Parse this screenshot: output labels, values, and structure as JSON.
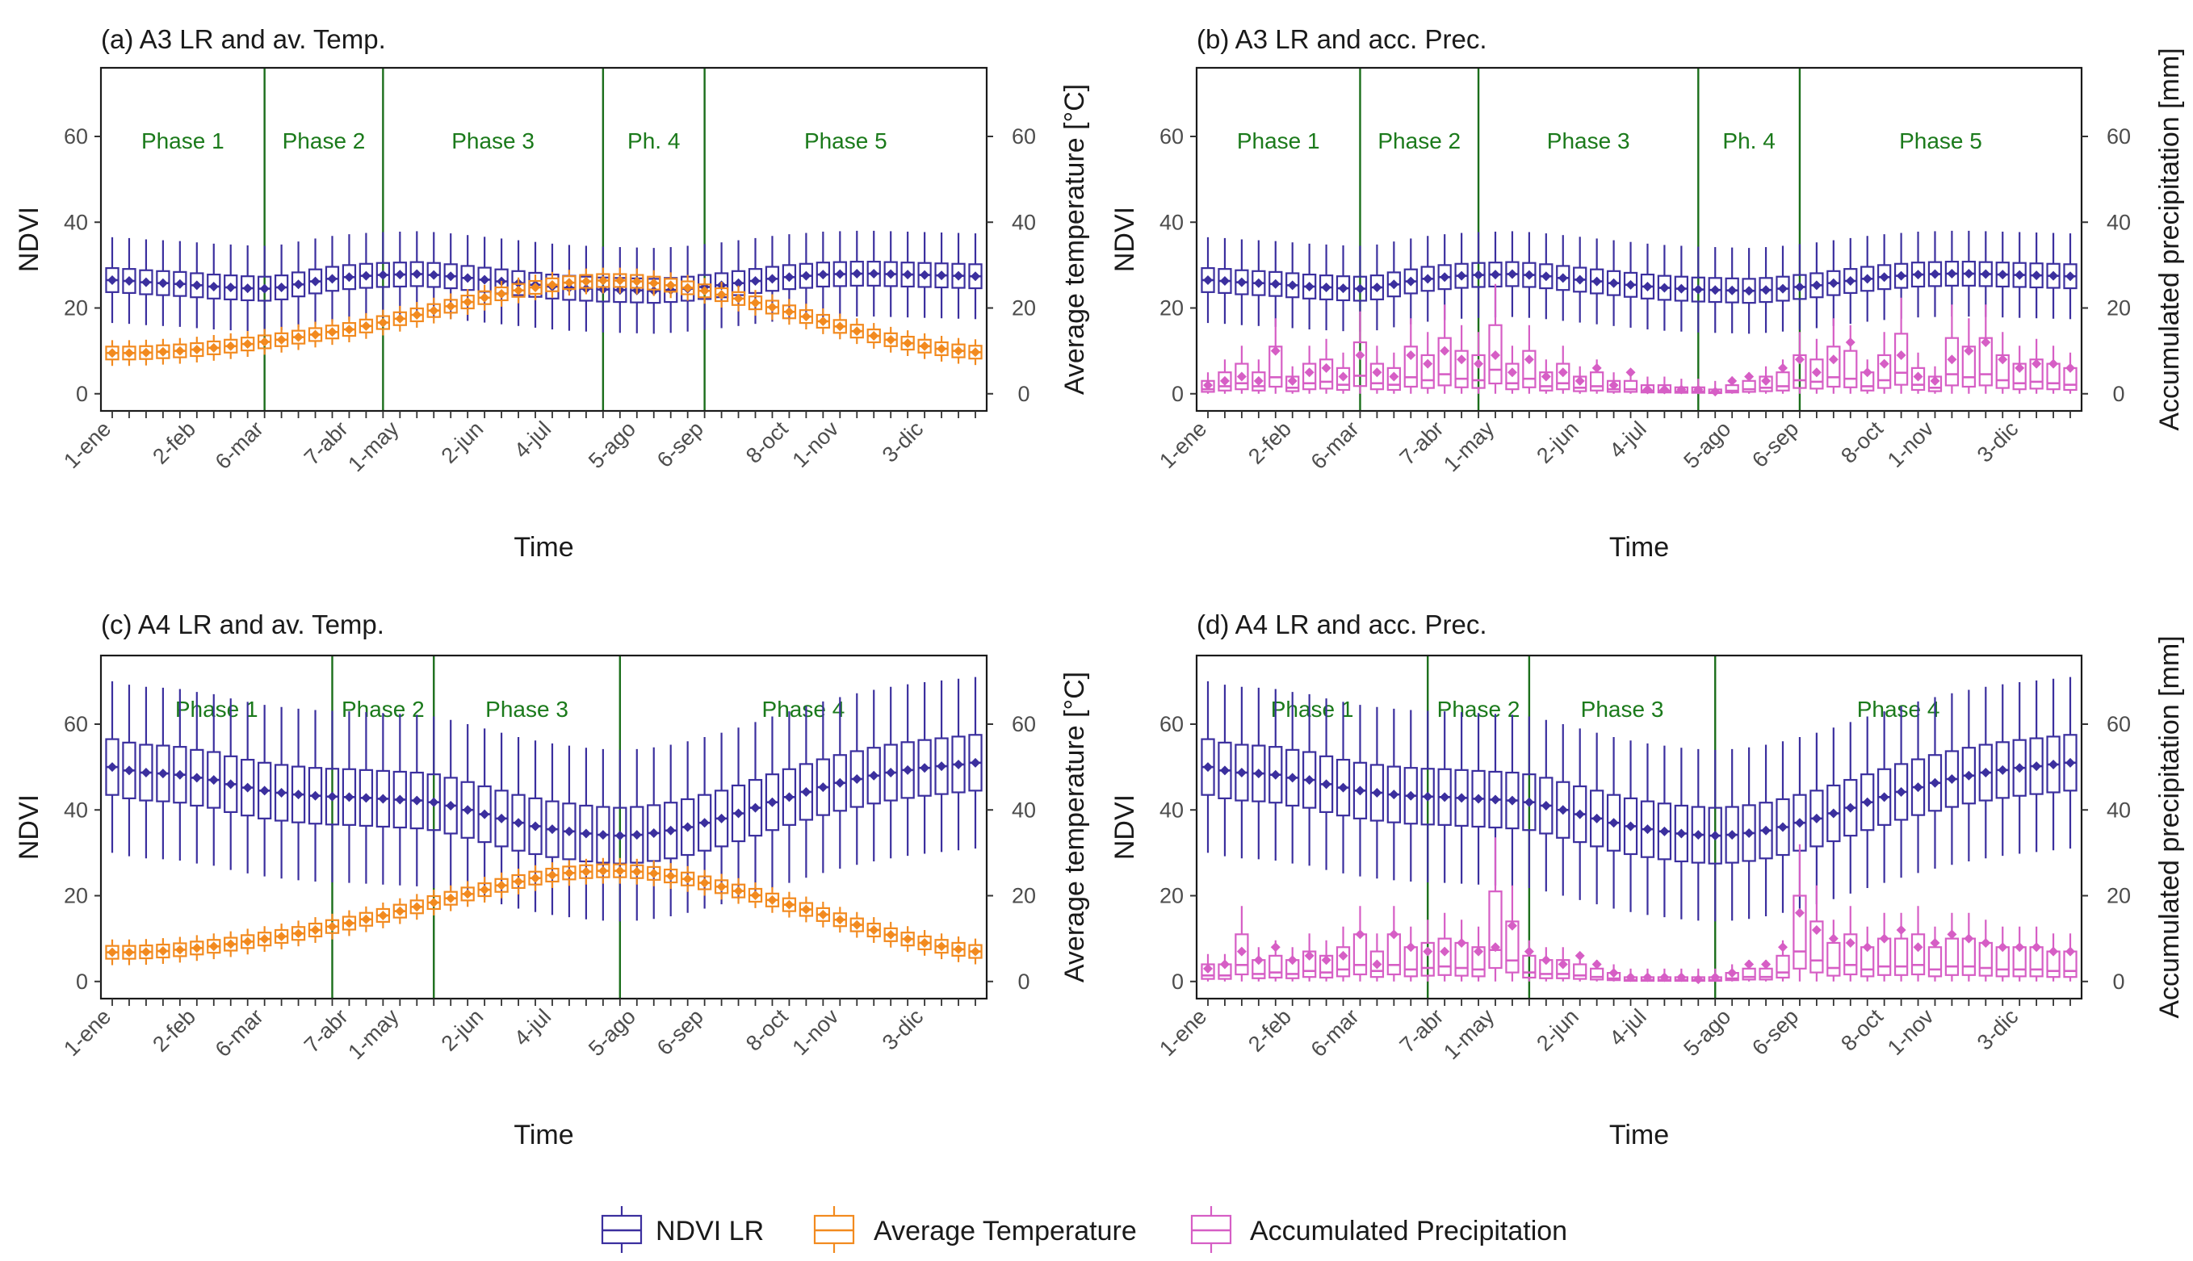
{
  "colors": {
    "ndvi": "#3b2f9e",
    "temperature": "#f28a1f",
    "precipitation": "#d65ec5",
    "phase_line": "#1b6e1b",
    "frame": "#1a1a1a"
  },
  "legend": {
    "ndvi": "NDVI LR",
    "temperature": "Average Temperature",
    "precipitation": "Accumulated Precipitation"
  },
  "chart_data": [
    {
      "id": "a",
      "type": "box",
      "title": "(a) A3 LR and av. Temp.",
      "xlabel": "Time",
      "ylabel": "NDVI",
      "y2label": "Average temperature [°C]",
      "ylim": [
        -4,
        76
      ],
      "yticks": [
        0,
        20,
        40,
        60
      ],
      "xticklabels": [
        "1-ene",
        "2-feb",
        "6-mar",
        "7-abr",
        "1-may",
        "2-jun",
        "4-jul",
        "5-ago",
        "6-sep",
        "8-oct",
        "1-nov",
        "3-dic"
      ],
      "xtick_weeks": [
        1,
        6,
        10,
        15,
        18,
        23,
        27,
        32,
        36,
        41,
        44,
        49
      ],
      "n_weeks": 52,
      "phases": [
        {
          "label": "Phase 1",
          "start_week": 1,
          "end_week": 10
        },
        {
          "label": "Phase 2",
          "start_week": 10,
          "end_week": 17
        },
        {
          "label": "Phase 3",
          "start_week": 17,
          "end_week": 30
        },
        {
          "label": "Ph. 4",
          "start_week": 30,
          "end_week": 36
        },
        {
          "label": "Phase 5",
          "start_week": 36,
          "end_week": 52
        }
      ],
      "ndvi_series": {
        "name": "NDVI LR",
        "median": [
          26.5,
          26.3,
          26,
          25.8,
          25.6,
          25.3,
          25,
          24.8,
          24.6,
          24.5,
          24.8,
          25.5,
          26.2,
          26.8,
          27.2,
          27.5,
          27.7,
          27.8,
          27.9,
          27.7,
          27.4,
          27,
          26.6,
          26.2,
          25.8,
          25.4,
          25,
          24.7,
          24.5,
          24.3,
          24.2,
          24.1,
          24,
          24.2,
          24.5,
          24.9,
          25.3,
          25.8,
          26.3,
          26.8,
          27.2,
          27.5,
          27.8,
          27.9,
          28,
          28,
          27.9,
          27.8,
          27.7,
          27.6,
          27.5,
          27.4
        ],
        "whisker": 10
      },
      "overlay_series": {
        "name": "Average Temperature",
        "median": [
          9.5,
          9.5,
          9.6,
          9.8,
          10,
          10.3,
          10.7,
          11.1,
          11.6,
          12.1,
          12.6,
          13.2,
          13.8,
          14.4,
          15,
          15.8,
          16.6,
          17.5,
          18.4,
          19.4,
          20.4,
          21.4,
          22.4,
          23.3,
          24.1,
          24.8,
          25.4,
          25.9,
          26.2,
          26.4,
          26.4,
          26.2,
          25.8,
          25.3,
          24.7,
          24,
          23.1,
          22.2,
          21.2,
          20.2,
          19.1,
          18,
          16.9,
          15.7,
          14.6,
          13.5,
          12.6,
          11.8,
          11.1,
          10.5,
          10,
          9.7
        ],
        "whisker": 3
      }
    },
    {
      "id": "b",
      "type": "box",
      "title": "(b) A3 LR and acc. Prec.",
      "xlabel": "Time",
      "ylabel": "NDVI",
      "y2label": "Accumulated precipitation [mm]",
      "ylim": [
        -4,
        76
      ],
      "yticks": [
        0,
        20,
        40,
        60
      ],
      "xticklabels": [
        "1-ene",
        "2-feb",
        "6-mar",
        "7-abr",
        "1-may",
        "2-jun",
        "4-jul",
        "5-ago",
        "6-sep",
        "8-oct",
        "1-nov",
        "3-dic"
      ],
      "xtick_weeks": [
        1,
        6,
        10,
        15,
        18,
        23,
        27,
        32,
        36,
        41,
        44,
        49
      ],
      "n_weeks": 52,
      "phases": [
        {
          "label": "Phase 1",
          "start_week": 1,
          "end_week": 10
        },
        {
          "label": "Phase 2",
          "start_week": 10,
          "end_week": 17
        },
        {
          "label": "Phase 3",
          "start_week": 17,
          "end_week": 30
        },
        {
          "label": "Ph. 4",
          "start_week": 30,
          "end_week": 36
        },
        {
          "label": "Phase 5",
          "start_week": 36,
          "end_week": 52
        }
      ],
      "ndvi_series": {
        "name": "NDVI LR",
        "median": [
          26.5,
          26.3,
          26,
          25.8,
          25.6,
          25.3,
          25,
          24.8,
          24.6,
          24.5,
          24.8,
          25.5,
          26.2,
          26.8,
          27.2,
          27.5,
          27.7,
          27.8,
          27.9,
          27.7,
          27.4,
          27,
          26.6,
          26.2,
          25.8,
          25.4,
          25,
          24.7,
          24.5,
          24.3,
          24.2,
          24.1,
          24,
          24.2,
          24.5,
          24.9,
          25.3,
          25.8,
          26.3,
          26.8,
          27.2,
          27.5,
          27.8,
          27.9,
          28,
          28,
          27.9,
          27.8,
          27.7,
          27.6,
          27.5,
          27.4
        ],
        "whisker": 10
      },
      "overlay_series": {
        "name": "Accumulated Precipitation",
        "mean": [
          2,
          3,
          4,
          3,
          10,
          3,
          5,
          6,
          4,
          9,
          5,
          4,
          9,
          7,
          10,
          8,
          7,
          9,
          5,
          8,
          4,
          5,
          3,
          6,
          2,
          5,
          1,
          1,
          1,
          1,
          0.5,
          3,
          4,
          3,
          6,
          8,
          5,
          8,
          12,
          5,
          7,
          9,
          4,
          3,
          8,
          10,
          12,
          8,
          6,
          7,
          7,
          6
        ],
        "q3": [
          3,
          5,
          7,
          5,
          11,
          4,
          7,
          8,
          6,
          12,
          7,
          6,
          11,
          9,
          13,
          10,
          9,
          16,
          7,
          10,
          5,
          7,
          4,
          5,
          3,
          3,
          2,
          2,
          1.5,
          1.5,
          1,
          2,
          3,
          4,
          5,
          9,
          8,
          11,
          10,
          5,
          9,
          14,
          6,
          4,
          13,
          11,
          13,
          9,
          7,
          8,
          7,
          6
        ]
      }
    },
    {
      "id": "c",
      "type": "box",
      "title": "(c) A4 LR and av. Temp.",
      "xlabel": "Time",
      "ylabel": "NDVI",
      "y2label": "Average temperature [°C]",
      "ylim": [
        -4,
        76
      ],
      "yticks": [
        0,
        20,
        40,
        60
      ],
      "xticklabels": [
        "1-ene",
        "2-feb",
        "6-mar",
        "7-abr",
        "1-may",
        "2-jun",
        "4-jul",
        "5-ago",
        "6-sep",
        "8-oct",
        "1-nov",
        "3-dic"
      ],
      "xtick_weeks": [
        1,
        6,
        10,
        15,
        18,
        23,
        27,
        32,
        36,
        41,
        44,
        49
      ],
      "n_weeks": 52,
      "phases": [
        {
          "label": "Phase 1",
          "start_week": 1,
          "end_week": 14
        },
        {
          "label": "Phase 2",
          "start_week": 14,
          "end_week": 20
        },
        {
          "label": "Phase 3",
          "start_week": 20,
          "end_week": 31
        },
        {
          "label": "Phase 4",
          "start_week": 31,
          "end_week": 52
        }
      ],
      "ndvi_series": {
        "name": "NDVI LR",
        "median": [
          50,
          49.2,
          48.7,
          48.5,
          48.2,
          47.5,
          47,
          46,
          45.2,
          44.5,
          44,
          43.6,
          43.3,
          43.1,
          43,
          42.8,
          42.6,
          42.4,
          42.2,
          41.8,
          41,
          40,
          39,
          38,
          37,
          36.2,
          35.5,
          35,
          34.5,
          34.2,
          34,
          34.2,
          34.6,
          35.2,
          36,
          37,
          38,
          39.2,
          40.5,
          41.8,
          43,
          44.2,
          45.3,
          46.3,
          47.2,
          48,
          48.7,
          49.3,
          49.8,
          50.2,
          50.6,
          51
        ],
        "whisker": 20
      },
      "overlay_series": {
        "name": "Average Temperature",
        "median": [
          6.8,
          6.8,
          6.9,
          7.1,
          7.4,
          7.8,
          8.2,
          8.7,
          9.3,
          9.9,
          10.5,
          11.2,
          12,
          12.8,
          13.6,
          14.5,
          15.4,
          16.4,
          17.4,
          18.4,
          19.4,
          20.4,
          21.4,
          22.4,
          23.3,
          24.1,
          24.8,
          25.3,
          25.6,
          25.8,
          25.8,
          25.6,
          25.2,
          24.6,
          23.9,
          23,
          22.1,
          21.1,
          20.1,
          19,
          17.9,
          16.8,
          15.6,
          14.4,
          13.2,
          12,
          10.9,
          9.9,
          9,
          8.2,
          7.5,
          7
        ],
        "whisker": 3
      }
    },
    {
      "id": "d",
      "type": "box",
      "title": "(d) A4 LR and acc. Prec.",
      "xlabel": "Time",
      "ylabel": "NDVI",
      "y2label": "Accumulated precipitation [mm]",
      "ylim": [
        -4,
        76
      ],
      "yticks": [
        0,
        20,
        40,
        60
      ],
      "xticklabels": [
        "1-ene",
        "2-feb",
        "6-mar",
        "7-abr",
        "1-may",
        "2-jun",
        "4-jul",
        "5-ago",
        "6-sep",
        "8-oct",
        "1-nov",
        "3-dic"
      ],
      "xtick_weeks": [
        1,
        6,
        10,
        15,
        18,
        23,
        27,
        32,
        36,
        41,
        44,
        49
      ],
      "n_weeks": 52,
      "phases": [
        {
          "label": "Phase 1",
          "start_week": 1,
          "end_week": 14
        },
        {
          "label": "Phase 2",
          "start_week": 14,
          "end_week": 20
        },
        {
          "label": "Phase 3",
          "start_week": 20,
          "end_week": 31
        },
        {
          "label": "Phase 4",
          "start_week": 31,
          "end_week": 52
        }
      ],
      "ndvi_series": {
        "name": "NDVI LR",
        "median": [
          50,
          49.2,
          48.7,
          48.5,
          48.2,
          47.5,
          47,
          46,
          45.2,
          44.5,
          44,
          43.6,
          43.3,
          43.1,
          43,
          42.8,
          42.6,
          42.4,
          42.2,
          41.8,
          41,
          40,
          39,
          38,
          37,
          36.2,
          35.5,
          35,
          34.5,
          34.2,
          34,
          34.2,
          34.6,
          35.2,
          36,
          37,
          38,
          39.2,
          40.5,
          41.8,
          43,
          44.2,
          45.3,
          46.3,
          47.2,
          48,
          48.7,
          49.3,
          49.8,
          50.2,
          50.6,
          51
        ],
        "whisker": 20
      },
      "overlay_series": {
        "name": "Accumulated Precipitation",
        "mean": [
          3,
          4,
          7,
          5,
          8,
          5,
          6,
          5,
          6,
          11,
          4,
          11,
          8,
          7,
          7,
          9,
          7,
          8,
          13,
          7,
          5,
          4,
          6,
          4,
          2,
          1,
          1,
          1,
          1,
          0.5,
          1,
          2,
          4,
          4,
          8,
          16,
          12,
          10,
          9,
          8,
          10,
          12,
          8,
          9,
          11,
          10,
          9,
          8,
          8,
          8,
          7,
          7
        ],
        "q3": [
          4,
          4,
          11,
          5,
          6,
          5,
          7,
          6,
          8,
          11,
          7,
          11,
          8,
          9,
          10,
          9,
          8,
          21,
          14,
          6,
          5,
          5,
          4,
          3,
          2,
          1,
          1,
          1,
          1,
          1,
          1,
          2,
          3,
          3,
          6,
          20,
          14,
          9,
          11,
          8,
          10,
          10,
          11,
          8,
          10,
          10,
          9,
          8,
          8,
          8,
          7,
          7
        ]
      }
    }
  ]
}
